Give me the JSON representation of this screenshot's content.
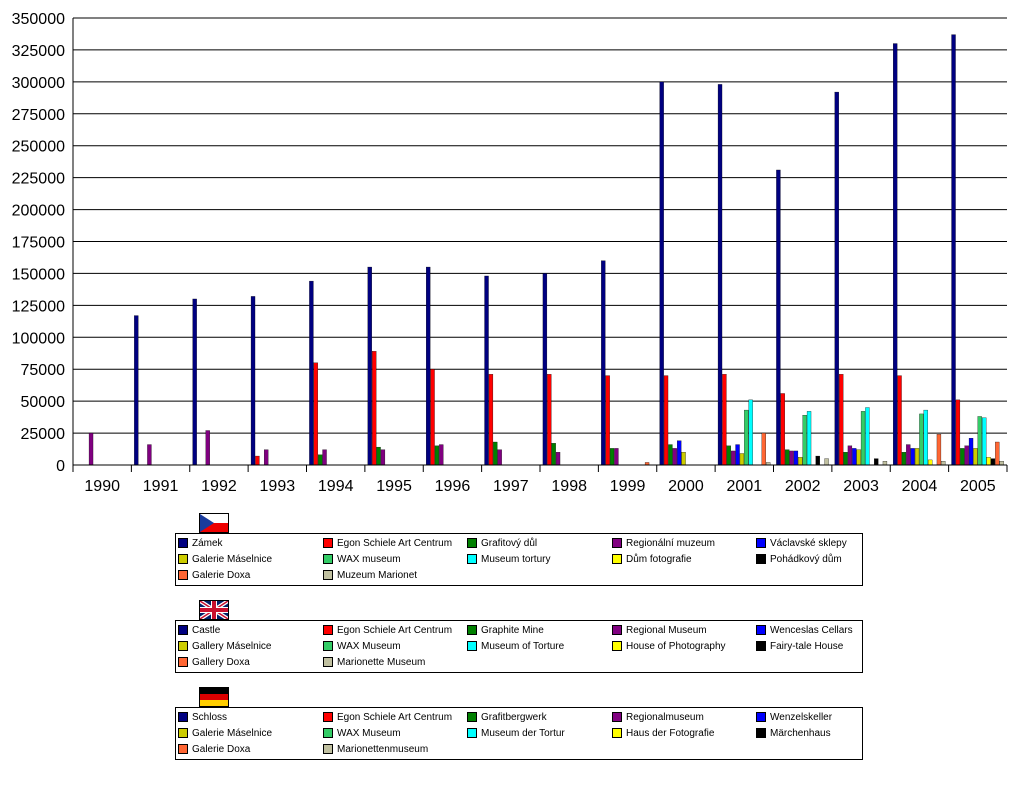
{
  "chart_data": {
    "type": "bar",
    "categories": [
      "1990",
      "1991",
      "1992",
      "1993",
      "1994",
      "1995",
      "1996",
      "1997",
      "1998",
      "1999",
      "2000",
      "2001",
      "2002",
      "2003",
      "2004",
      "2005"
    ],
    "ylim": [
      0,
      350000
    ],
    "yticks": [
      "0",
      "25000",
      "50000",
      "75000",
      "100000",
      "125000",
      "150000",
      "175000",
      "200000",
      "225000",
      "250000",
      "275000",
      "300000",
      "325000",
      "350000"
    ],
    "grid": true,
    "series": [
      {
        "name": "Zámek",
        "color": "#000080",
        "values": [
          null,
          117000,
          130000,
          132000,
          144000,
          155000,
          155000,
          148000,
          150000,
          160000,
          300000,
          298000,
          231000,
          292000,
          330000,
          337000
        ]
      },
      {
        "name": "Egon Schiele Art Centrum",
        "color": "#ff0000",
        "values": [
          null,
          null,
          null,
          7000,
          80000,
          89000,
          75000,
          71000,
          71000,
          70000,
          70000,
          71000,
          56000,
          71000,
          70000,
          51000
        ]
      },
      {
        "name": "Grafitový důl",
        "color": "#008000",
        "values": [
          null,
          null,
          null,
          null,
          8000,
          14000,
          15000,
          18000,
          17000,
          13000,
          16000,
          15000,
          12000,
          10000,
          10000,
          13000
        ]
      },
      {
        "name": "Regionální muzeum",
        "color": "#800080",
        "values": [
          25000,
          16000,
          27000,
          12000,
          12000,
          12000,
          16000,
          12000,
          10000,
          13000,
          13000,
          11000,
          11000,
          15000,
          16000,
          15000
        ]
      },
      {
        "name": "Václavské sklepy",
        "color": "#0000ff",
        "values": [
          null,
          null,
          null,
          null,
          null,
          null,
          null,
          null,
          null,
          null,
          19000,
          16000,
          11000,
          13000,
          13000,
          21000
        ]
      },
      {
        "name": "Galerie Máselnice",
        "color": "#cccc00",
        "values": [
          null,
          null,
          null,
          null,
          null,
          null,
          null,
          null,
          null,
          null,
          10000,
          9000,
          6000,
          12000,
          13000,
          13000
        ]
      },
      {
        "name": "WAX museum",
        "color": "#33cc66",
        "values": [
          null,
          null,
          null,
          null,
          null,
          null,
          null,
          null,
          null,
          null,
          null,
          43000,
          39000,
          42000,
          40000,
          38000
        ]
      },
      {
        "name": "Museum tortury",
        "color": "#00ffff",
        "values": [
          null,
          null,
          null,
          null,
          null,
          null,
          null,
          null,
          null,
          null,
          null,
          51000,
          42000,
          45000,
          43000,
          37000
        ]
      },
      {
        "name": "Dům fotografie",
        "color": "#ffff00",
        "values": [
          null,
          null,
          null,
          null,
          null,
          null,
          null,
          null,
          null,
          null,
          null,
          null,
          null,
          null,
          4000,
          6000
        ]
      },
      {
        "name": "Pohádkový dům",
        "color": "#000000",
        "values": [
          null,
          null,
          null,
          null,
          null,
          null,
          null,
          null,
          null,
          null,
          null,
          null,
          7000,
          5000,
          null,
          5000
        ]
      },
      {
        "name": "Galerie Doxa",
        "color": "#ff6633",
        "values": [
          null,
          null,
          null,
          null,
          null,
          null,
          null,
          null,
          null,
          2000,
          null,
          25000,
          null,
          null,
          24000,
          18000
        ]
      },
      {
        "name": "Muzeum Marionet",
        "color": "#c0c0a0",
        "values": [
          null,
          null,
          null,
          null,
          null,
          null,
          null,
          null,
          null,
          null,
          null,
          2000,
          5000,
          3000,
          3000,
          3000
        ]
      }
    ],
    "legends": [
      {
        "flag": "cz",
        "labels": [
          "Zámek",
          "Egon Schiele Art Centrum",
          "Grafitový důl",
          "Regionální muzeum",
          "Václavské sklepy",
          "Galerie Máselnice",
          "WAX museum",
          "Museum tortury",
          "Dům  fotografie",
          "Pohádkový dům",
          "Galerie Doxa",
          "Muzeum Marionet"
        ]
      },
      {
        "flag": "uk",
        "labels": [
          "Castle",
          "Egon Schiele Art Centrum",
          "Graphite Mine",
          "Regional Museum",
          "Wenceslas Cellars",
          "Gallery Máselnice",
          "WAX Museum",
          "Museum of Torture",
          "House of Photography",
          "Fairy-tale House",
          "Gallery Doxa",
          "Marionette Museum"
        ]
      },
      {
        "flag": "de",
        "labels": [
          "Schloss",
          "Egon Schiele Art Centrum",
          "Grafitbergwerk",
          "Regionalmuseum",
          "Wenzelskeller",
          "Galerie Máselnice",
          "WAX Museum",
          "Museum der Tortur",
          "Haus der Fotografie",
          "Märchenhaus",
          "Galerie Doxa",
          "Marionettenmuseum"
        ]
      }
    ]
  }
}
